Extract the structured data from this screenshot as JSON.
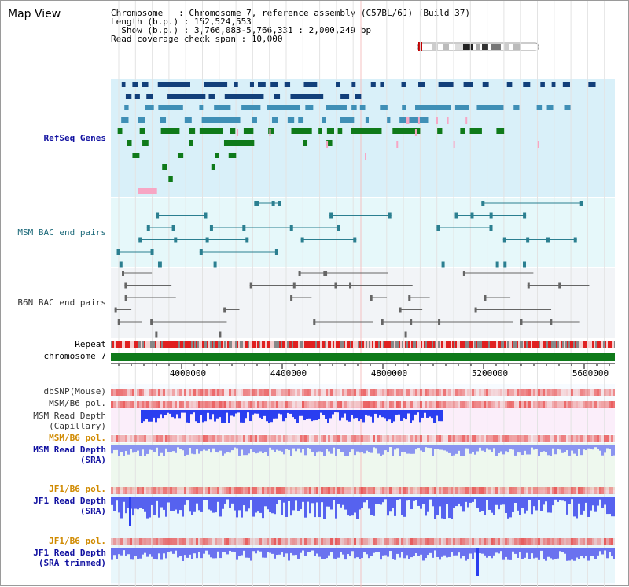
{
  "header": {
    "title": "Map View",
    "lines": [
      "Chromosome   : Chromosome 7, reference assembly (C57BL/6J) (Build 37)",
      "Length (b.p.) : 152,524,553",
      "  Show (b.p.) : 3,766,083-5,766,331 : 2,000,249 bp",
      "Read coverage check span : 10,000"
    ]
  },
  "tracks": {
    "refseq": "RefSeq Genes",
    "msm_bac": "MSM BAC end pairs",
    "b6n_bac": "B6N BAC end pairs",
    "repeat": "Repeat",
    "chromosome": "chromosome 7",
    "dbsnp": "dbSNP(Mouse)",
    "msm_b6_pol_1": "MSM/B6 pol.",
    "msm_read_depth_cap_1": "MSM Read Depth",
    "msm_read_depth_cap_2": "(Capillary)",
    "msm_b6_pol_2": "MSM/B6 pol.",
    "msm_read_depth_sra_1": "MSM Read Depth",
    "msm_read_depth_sra_2": "(SRA)",
    "jf1_b6_pol_1": "JF1/B6 pol.",
    "jf1_read_depth_sra_1": "JF1 Read Depth",
    "jf1_read_depth_sra_2": "(SRA)",
    "jf1_b6_pol_2": "JF1/B6 pol.",
    "jf1_read_depth_trim_1": "JF1 Read Depth",
    "jf1_read_depth_trim_2": "(SRA trimmed)"
  },
  "axis": {
    "ticks": [
      "4000000",
      "4400000",
      "4800000",
      "5200000",
      "5600000"
    ]
  },
  "colors": {
    "refseq_bg": "#d9f0f9",
    "gene_dark": "#123f7a",
    "gene_mid": "#3f8fb6",
    "gene_green": "#0f7a1a",
    "gene_pink": "#f7a6c4",
    "msm_bac": "#2b7f90",
    "b6n_bac": "#666666",
    "chromosome": "#0f7a1a"
  }
}
